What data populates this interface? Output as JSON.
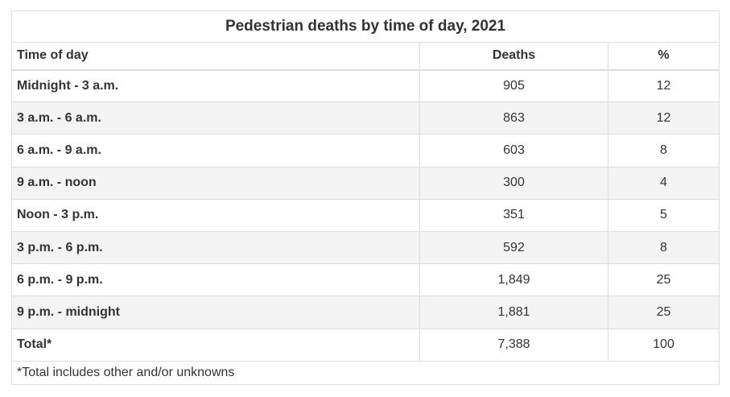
{
  "chart_data": {
    "type": "table",
    "title": "Pedestrian deaths by time of day, 2021",
    "columns": [
      "Time of day",
      "Deaths",
      "%"
    ],
    "rows": [
      [
        "Midnight - 3 a.m.",
        "905",
        "12"
      ],
      [
        "3 a.m. - 6 a.m.",
        "863",
        "12"
      ],
      [
        "6 a.m. - 9 a.m.",
        "603",
        "8"
      ],
      [
        "9 a.m. - noon",
        "300",
        "4"
      ],
      [
        "Noon - 3 p.m.",
        "351",
        "5"
      ],
      [
        "3 p.m. - 6 p.m.",
        "592",
        "8"
      ],
      [
        "6 p.m. - 9 p.m.",
        "1,849",
        "25"
      ],
      [
        "9 p.m. - midnight",
        "1,881",
        "25"
      ],
      [
        "Total*",
        "7,388",
        "100"
      ]
    ],
    "footnote": "*Total includes other and/or unknowns",
    "colors": {
      "border": "#dddddd",
      "stripe": "#f4f4f4",
      "text": "#333333"
    }
  }
}
